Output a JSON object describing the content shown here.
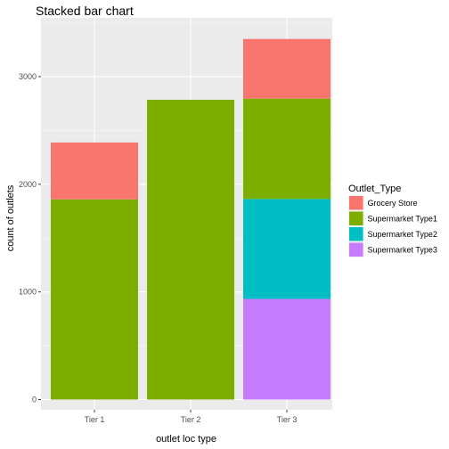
{
  "chart_data": {
    "type": "bar",
    "stacked": true,
    "title": "Stacked bar chart",
    "xlabel": "outlet loc type",
    "ylabel": "count of outlets",
    "categories": [
      "Tier 1",
      "Tier 2",
      "Tier 3"
    ],
    "ylim": [
      0,
      3500
    ],
    "yticks": [
      0,
      1000,
      2000,
      3000
    ],
    "grid": true,
    "legend": {
      "title": "Outlet_Type",
      "position": "right"
    },
    "series": [
      {
        "name": "Grocery Store",
        "color": "#F8766D",
        "values": [
          528,
          0,
          555
        ]
      },
      {
        "name": "Supermarket Type1",
        "color": "#7CAE00",
        "values": [
          1860,
          2785,
          932
        ]
      },
      {
        "name": "Supermarket Type2",
        "color": "#00BFC4",
        "values": [
          0,
          0,
          928
        ]
      },
      {
        "name": "Supermarket Type3",
        "color": "#C77CFF",
        "values": [
          0,
          0,
          935
        ]
      }
    ],
    "stack_order": [
      3,
      2,
      1,
      0
    ]
  }
}
